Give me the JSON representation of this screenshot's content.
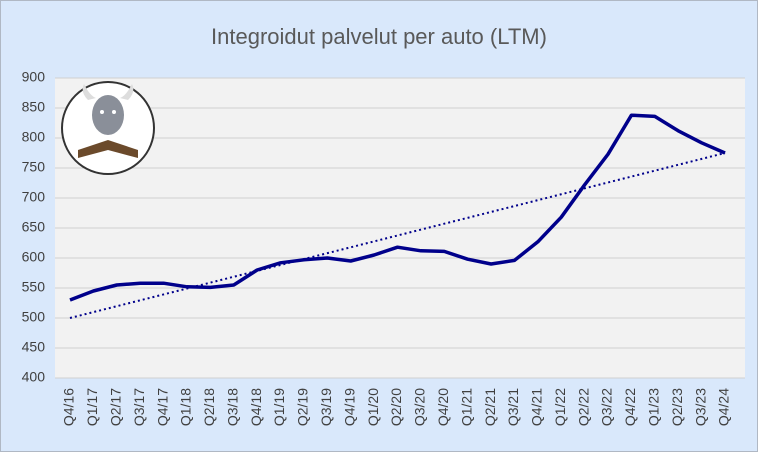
{
  "chart_data": {
    "type": "line",
    "title": "Integroidut palvelut per auto (LTM)",
    "categories": [
      "Q4/16",
      "Q1/17",
      "Q2/17",
      "Q3/17",
      "Q4/17",
      "Q1/18",
      "Q2/18",
      "Q3/18",
      "Q4/18",
      "Q1/19",
      "Q2/19",
      "Q3/19",
      "Q4/19",
      "Q1/20",
      "Q2/20",
      "Q3/20",
      "Q4/20",
      "Q1/21",
      "Q2/21",
      "Q3/21",
      "Q4/21",
      "Q1/22",
      "Q2/22",
      "Q3/22",
      "Q4/22",
      "Q1/23",
      "Q2/23",
      "Q3/23",
      "Q4/24"
    ],
    "values": [
      530,
      545,
      555,
      558,
      558,
      552,
      551,
      555,
      580,
      592,
      597,
      600,
      595,
      605,
      618,
      612,
      611,
      598,
      590,
      596,
      627,
      668,
      722,
      773,
      838,
      836,
      812,
      792,
      775
    ],
    "trendline": [
      500,
      775
    ],
    "color": "#00008b",
    "ylim": [
      400,
      900
    ],
    "yticks": [
      400,
      450,
      500,
      550,
      600,
      650,
      700,
      750,
      800,
      850,
      900
    ],
    "grid": true
  }
}
